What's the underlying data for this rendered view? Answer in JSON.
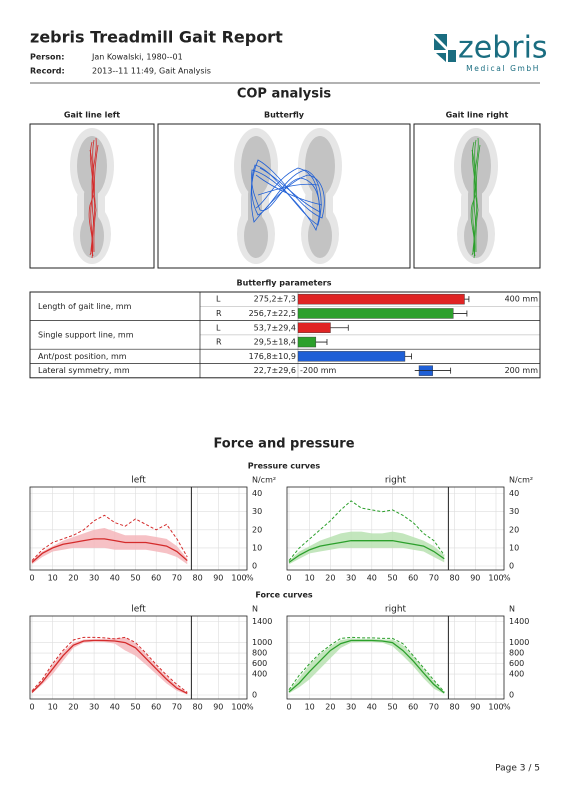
{
  "header": {
    "title": "zebris Treadmill Gait Report",
    "person_label": "Person:",
    "person": "Jan Kowalski, 1980--01",
    "record_label": "Record:",
    "record": "2013--11 11:49, Gait Analysis",
    "logo_name": "zebris",
    "logo_sub": "Medical GmbH"
  },
  "cop": {
    "title": "COP analysis",
    "panels": [
      "Gait line left",
      "Butterfly",
      "Gait line right"
    ]
  },
  "butterfly_params": {
    "title": "Butterfly parameters",
    "scale": {
      "value": 400,
      "label": "400 mm"
    },
    "symmetry_scale": [
      {
        "value": -200,
        "label": "-200 mm"
      },
      {
        "value": 200,
        "label": "200 mm"
      }
    ],
    "rows": [
      {
        "label": "Length of gait line, mm",
        "sides": [
          {
            "side": "L",
            "value": 275.2,
            "error": 7.3,
            "value_label": "275,2±7,3",
            "color": "#e02424"
          },
          {
            "side": "R",
            "value": 256.7,
            "error": 22.5,
            "value_label": "256,7±22,5",
            "color": "#2ca02c"
          }
        ]
      },
      {
        "label": "Single support line, mm",
        "sides": [
          {
            "side": "L",
            "value": 53.7,
            "error": 29.4,
            "value_label": "53,7±29,4",
            "color": "#e02424"
          },
          {
            "side": "R",
            "value": 29.5,
            "error": 18.4,
            "value_label": "29,5±18,4",
            "color": "#2ca02c"
          }
        ]
      },
      {
        "label": "Ant/post position, mm",
        "sides": [
          {
            "value": 176.8,
            "error": 10.9,
            "value_label": "176,8±10,9",
            "color": "#1f5fd6"
          }
        ]
      },
      {
        "label": "Lateral symmetry, mm",
        "symmetric": true,
        "sides": [
          {
            "value": 22.7,
            "error": 29.6,
            "value_label": "22,7±29,6",
            "color": "#1f5fd6"
          }
        ]
      }
    ]
  },
  "force_pressure": {
    "title": "Force and pressure",
    "charts": [
      {
        "title": "Pressure curves",
        "unit": "N/cm²",
        "ylim": [
          0,
          42
        ],
        "yticks": [
          0,
          10,
          20,
          30,
          40
        ],
        "xlim": [
          0,
          100
        ],
        "xticks": [
          0,
          10,
          20,
          30,
          40,
          50,
          60,
          70,
          80,
          90,
          100
        ],
        "x_unit": "%",
        "stance_end": 77,
        "x": [
          0,
          5,
          10,
          15,
          20,
          25,
          30,
          35,
          40,
          45,
          50,
          55,
          60,
          65,
          70,
          75
        ],
        "sides": [
          {
            "name": "left",
            "color": "#d42b2b",
            "band": "#f4b6bb",
            "mean": [
              2,
              7,
              10,
              12,
              13,
              14,
              15,
              15,
              14,
              13,
              13,
              13,
              12,
              11,
              8,
              3
            ],
            "lower": [
              1,
              5,
              8,
              9,
              10,
              10,
              10,
              10,
              9,
              9,
              9,
              9,
              8,
              7,
              5,
              1
            ],
            "upper": [
              3,
              8,
              11,
              14,
              16,
              18,
              20,
              21,
              19,
              17,
              17,
              17,
              16,
              15,
              11,
              4
            ],
            "max": [
              3,
              9,
              13,
              15,
              17,
              20,
              25,
              28,
              24,
              22,
              26,
              23,
              20,
              23,
              15,
              5
            ]
          },
          {
            "name": "right",
            "color": "#2ca02c",
            "band": "#b8e2b2",
            "mean": [
              2,
              6,
              9,
              11,
              12,
              13,
              14,
              14,
              14,
              14,
              14,
              13,
              12,
              11,
              8,
              4
            ],
            "lower": [
              1,
              4,
              7,
              8,
              9,
              10,
              10,
              10,
              10,
              10,
              10,
              10,
              9,
              8,
              5,
              2
            ],
            "upper": [
              3,
              8,
              11,
              14,
              16,
              18,
              19,
              19,
              18,
              18,
              19,
              18,
              16,
              14,
              11,
              6
            ],
            "max": [
              3,
              10,
              15,
              20,
              25,
              31,
              36,
              32,
              31,
              30,
              31,
              28,
              24,
              18,
              14,
              6
            ]
          }
        ]
      },
      {
        "title": "Force curves",
        "unit": "N",
        "ylim": [
          0,
          1450
        ],
        "yticks": [
          0,
          400,
          600,
          800,
          1000,
          1400
        ],
        "xlim": [
          0,
          100
        ],
        "xticks": [
          0,
          10,
          20,
          30,
          40,
          50,
          60,
          70,
          80,
          90,
          100
        ],
        "x_unit": "%",
        "stance_end": 77,
        "x": [
          0,
          5,
          10,
          15,
          20,
          25,
          30,
          35,
          40,
          45,
          50,
          55,
          60,
          65,
          70,
          75
        ],
        "sides": [
          {
            "name": "left",
            "color": "#d42b2b",
            "band": "#f4b6bb",
            "mean": [
              50,
              250,
              500,
              750,
              950,
              1030,
              1040,
              1040,
              1030,
              1000,
              900,
              700,
              500,
              300,
              130,
              30
            ],
            "lower": [
              30,
              200,
              400,
              650,
              900,
              1000,
              1020,
              1010,
              980,
              850,
              750,
              580,
              400,
              220,
              80,
              10
            ],
            "upper": [
              70,
              280,
              580,
              830,
              1000,
              1060,
              1070,
              1070,
              1080,
              1100,
              980,
              780,
              560,
              360,
              180,
              40
            ],
            "max": [
              80,
              300,
              600,
              850,
              1050,
              1100,
              1100,
              1090,
              1070,
              1100,
              1000,
              800,
              580,
              380,
              200,
              50
            ]
          },
          {
            "name": "right",
            "color": "#2ca02c",
            "band": "#b8e2b2",
            "mean": [
              60,
              230,
              450,
              650,
              850,
              980,
              1040,
              1040,
              1040,
              1030,
              1000,
              850,
              650,
              420,
              200,
              40
            ],
            "lower": [
              30,
              150,
              300,
              500,
              700,
              900,
              1000,
              1010,
              1010,
              1000,
              930,
              750,
              550,
              320,
              120,
              20
            ],
            "upper": [
              90,
              330,
              580,
              780,
              930,
              1050,
              1080,
              1070,
              1070,
              1060,
              1060,
              950,
              740,
              500,
              260,
              60
            ],
            "max": [
              100,
              380,
              600,
              800,
              950,
              1080,
              1100,
              1090,
              1090,
              1080,
              1080,
              980,
              750,
              520,
              280,
              60
            ]
          }
        ]
      }
    ]
  },
  "footer": {
    "page": "Page 3 / 5"
  }
}
